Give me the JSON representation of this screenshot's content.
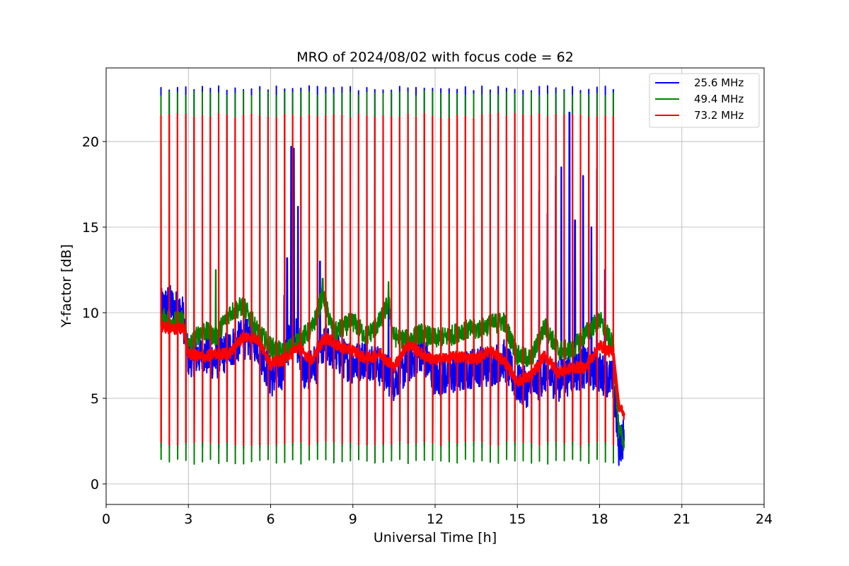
{
  "chart_data": {
    "type": "line",
    "title": "MRO of 2024/08/02 with focus code = 62",
    "xlabel": "Universal Time [h]",
    "ylabel": "Y-factor [dB]",
    "xlim": [
      0,
      24
    ],
    "ylim": [
      -1.2,
      24.3
    ],
    "xticks": [
      0,
      3,
      6,
      9,
      12,
      15,
      18,
      21,
      24
    ],
    "yticks": [
      0,
      5,
      10,
      15,
      20
    ],
    "grid": true,
    "legend_position": "top-right",
    "cycle_period_h": 0.3,
    "data_start_h": 2.0,
    "data_end_h": 18.9,
    "series": [
      {
        "name": "25.6 MHz",
        "color": "#0000ff",
        "spike_peak": 23.1,
        "spike_floor": 2.2,
        "baseline": [
          [
            2.0,
            10.2
          ],
          [
            2.3,
            10.5
          ],
          [
            2.8,
            9.8
          ],
          [
            3.0,
            7.4
          ],
          [
            3.5,
            7.6
          ],
          [
            4.0,
            7.2
          ],
          [
            4.5,
            7.9
          ],
          [
            5.0,
            8.5
          ],
          [
            5.5,
            8.3
          ],
          [
            6.0,
            6.2
          ],
          [
            6.5,
            6.8
          ],
          [
            6.8,
            9.5
          ],
          [
            7.2,
            6.5
          ],
          [
            7.8,
            7.2
          ],
          [
            8.0,
            8.2
          ],
          [
            8.5,
            7.5
          ],
          [
            9.0,
            7.0
          ],
          [
            9.5,
            7.4
          ],
          [
            10.0,
            6.8
          ],
          [
            10.5,
            6.0
          ],
          [
            11.0,
            7.0
          ],
          [
            11.5,
            7.8
          ],
          [
            12.0,
            6.2
          ],
          [
            12.5,
            6.4
          ],
          [
            13.0,
            6.5
          ],
          [
            13.5,
            6.9
          ],
          [
            14.0,
            6.8
          ],
          [
            14.5,
            7.3
          ],
          [
            15.0,
            5.8
          ],
          [
            15.5,
            5.6
          ],
          [
            16.0,
            6.5
          ],
          [
            16.5,
            6.0
          ],
          [
            17.0,
            6.5
          ],
          [
            17.5,
            6.8
          ],
          [
            18.0,
            6.5
          ],
          [
            18.5,
            6.0
          ],
          [
            18.7,
            2.2
          ],
          [
            18.9,
            2.8
          ]
        ],
        "burst_peaks": [
          [
            6.6,
            13.2
          ],
          [
            6.75,
            19.7
          ],
          [
            6.85,
            19.6
          ],
          [
            7.0,
            16.2
          ],
          [
            7.8,
            13.0
          ],
          [
            15.8,
            17.1
          ],
          [
            16.1,
            15.8
          ],
          [
            16.4,
            18.0
          ],
          [
            16.6,
            18.5
          ],
          [
            16.9,
            21.7
          ],
          [
            17.1,
            15.4
          ],
          [
            17.4,
            18.0
          ],
          [
            17.7,
            15.0
          ],
          [
            17.9,
            18.4
          ],
          [
            18.2,
            12.5
          ],
          [
            6.5,
            11.0
          ],
          [
            10.3,
            11.2
          ]
        ]
      },
      {
        "name": "49.4 MHz",
        "color": "#008000",
        "spike_peak": 22.8,
        "spike_floor": 1.3,
        "baseline": [
          [
            2.0,
            9.7
          ],
          [
            2.5,
            9.5
          ],
          [
            2.8,
            9.6
          ],
          [
            3.0,
            8.0
          ],
          [
            3.5,
            9.0
          ],
          [
            4.0,
            8.6
          ],
          [
            4.5,
            10.0
          ],
          [
            5.0,
            10.4
          ],
          [
            5.5,
            9.0
          ],
          [
            6.0,
            8.0
          ],
          [
            6.5,
            7.6
          ],
          [
            7.0,
            8.4
          ],
          [
            7.5,
            9.0
          ],
          [
            7.9,
            11.0
          ],
          [
            8.3,
            8.8
          ],
          [
            8.5,
            9.0
          ],
          [
            9.0,
            9.5
          ],
          [
            9.5,
            8.6
          ],
          [
            10.0,
            9.5
          ],
          [
            10.3,
            10.6
          ],
          [
            10.5,
            8.6
          ],
          [
            11.0,
            8.4
          ],
          [
            11.5,
            8.8
          ],
          [
            12.0,
            8.5
          ],
          [
            12.5,
            8.6
          ],
          [
            13.0,
            9.0
          ],
          [
            13.5,
            9.0
          ],
          [
            14.0,
            9.3
          ],
          [
            14.5,
            9.5
          ],
          [
            15.0,
            7.5
          ],
          [
            15.5,
            7.3
          ],
          [
            16.0,
            9.2
          ],
          [
            16.5,
            7.8
          ],
          [
            17.0,
            7.8
          ],
          [
            17.5,
            8.8
          ],
          [
            18.0,
            9.6
          ],
          [
            18.5,
            8.0
          ],
          [
            18.7,
            3.0
          ],
          [
            18.9,
            2.5
          ]
        ],
        "burst_peaks": [
          [
            4.0,
            12.5
          ],
          [
            5.0,
            10.9
          ],
          [
            10.3,
            11.8
          ],
          [
            7.9,
            12.0
          ]
        ]
      },
      {
        "name": "73.2 MHz",
        "color": "#ff0000",
        "spike_peak": 21.5,
        "spike_floor": 2.4,
        "baseline": [
          [
            2.0,
            9.2
          ],
          [
            2.5,
            9.0
          ],
          [
            2.8,
            9.2
          ],
          [
            3.0,
            7.6
          ],
          [
            3.5,
            7.4
          ],
          [
            4.0,
            7.6
          ],
          [
            4.5,
            7.6
          ],
          [
            5.0,
            8.6
          ],
          [
            5.5,
            8.5
          ],
          [
            6.0,
            7.0
          ],
          [
            6.5,
            7.3
          ],
          [
            7.0,
            8.0
          ],
          [
            7.5,
            7.2
          ],
          [
            8.0,
            8.6
          ],
          [
            8.5,
            8.0
          ],
          [
            9.0,
            7.8
          ],
          [
            9.5,
            7.3
          ],
          [
            10.0,
            7.6
          ],
          [
            10.5,
            6.8
          ],
          [
            11.0,
            8.2
          ],
          [
            11.5,
            7.6
          ],
          [
            12.0,
            7.2
          ],
          [
            12.5,
            7.4
          ],
          [
            13.0,
            7.4
          ],
          [
            13.5,
            7.3
          ],
          [
            14.0,
            7.8
          ],
          [
            14.5,
            7.2
          ],
          [
            15.0,
            6.0
          ],
          [
            15.5,
            6.3
          ],
          [
            16.0,
            7.5
          ],
          [
            16.5,
            6.5
          ],
          [
            17.0,
            6.8
          ],
          [
            17.5,
            6.8
          ],
          [
            18.0,
            8.1
          ],
          [
            18.5,
            7.6
          ],
          [
            18.7,
            4.6
          ],
          [
            18.9,
            4.0
          ]
        ],
        "burst_peaks": []
      }
    ]
  }
}
